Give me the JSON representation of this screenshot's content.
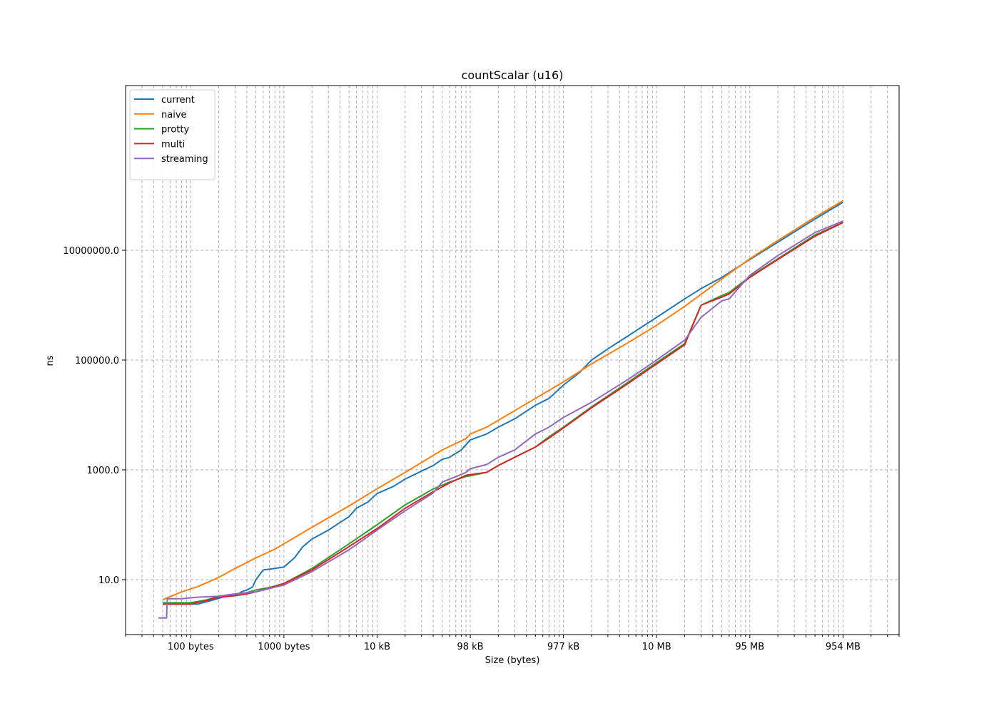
{
  "chart_data": {
    "type": "line",
    "title": "countScalar (u16)",
    "xlabel": "Size (bytes)",
    "ylabel": "ns",
    "x_scale": "log",
    "y_scale": "log",
    "xlim": [
      20,
      4000000000
    ],
    "ylim": [
      1,
      10000000000
    ],
    "grid": "both axes, dashed, major and minor x",
    "legend_position": "top-left",
    "x_ticks": [
      {
        "value": 100,
        "label": "100 bytes"
      },
      {
        "value": 1000,
        "label": "1000 bytes"
      },
      {
        "value": 10000,
        "label": "10 kB"
      },
      {
        "value": 100000,
        "label": "98 kB"
      },
      {
        "value": 1000000,
        "label": "977 kB"
      },
      {
        "value": 10000000,
        "label": "10 MB"
      },
      {
        "value": 100000000,
        "label": "95 MB"
      },
      {
        "value": 1000000000,
        "label": "954 MB"
      }
    ],
    "y_ticks": [
      {
        "value": 10,
        "label": "10.0"
      },
      {
        "value": 1000,
        "label": "1000.0"
      },
      {
        "value": 100000,
        "label": "100000.0"
      },
      {
        "value": 10000000,
        "label": "10000000.0"
      }
    ],
    "series": [
      {
        "name": "current",
        "color": "#1f77b4",
        "points": [
          [
            50,
            3.6
          ],
          [
            60,
            3.6
          ],
          [
            80,
            3.6
          ],
          [
            120,
            3.6
          ],
          [
            160,
            4.1
          ],
          [
            240,
            5.0
          ],
          [
            300,
            5.1
          ],
          [
            350,
            6.0
          ],
          [
            400,
            6.5
          ],
          [
            460,
            7.3
          ],
          [
            500,
            10
          ],
          [
            600,
            15
          ],
          [
            800,
            16
          ],
          [
            1000,
            17
          ],
          [
            1300,
            25
          ],
          [
            1600,
            40
          ],
          [
            2000,
            55
          ],
          [
            3000,
            80
          ],
          [
            4000,
            110
          ],
          [
            5000,
            140
          ],
          [
            6000,
            200
          ],
          [
            8000,
            260
          ],
          [
            10000,
            370
          ],
          [
            15000,
            500
          ],
          [
            20000,
            680
          ],
          [
            30000,
            950
          ],
          [
            40000,
            1200
          ],
          [
            50000,
            1550
          ],
          [
            60000,
            1700
          ],
          [
            80000,
            2300
          ],
          [
            100000,
            3500
          ],
          [
            150000,
            4500
          ],
          [
            200000,
            6000
          ],
          [
            300000,
            8500
          ],
          [
            500000,
            15000
          ],
          [
            700000,
            20000
          ],
          [
            1000000,
            35000
          ],
          [
            1500000,
            60000
          ],
          [
            2000000,
            100000
          ],
          [
            3000000,
            160000
          ],
          [
            5000000,
            280000
          ],
          [
            10000000,
            600000
          ],
          [
            20000000,
            1300000
          ],
          [
            30000000,
            2000000
          ],
          [
            50000000,
            3200000
          ],
          [
            100000000,
            6800000
          ],
          [
            200000000,
            14000000
          ],
          [
            500000000,
            37000000
          ],
          [
            1000000000,
            75000000
          ]
        ]
      },
      {
        "name": "naive",
        "color": "#ff7f0e",
        "points": [
          [
            50,
            4.3
          ],
          [
            80,
            6.0
          ],
          [
            120,
            7.5
          ],
          [
            200,
            11
          ],
          [
            300,
            16
          ],
          [
            500,
            25
          ],
          [
            800,
            36
          ],
          [
            1000,
            45
          ],
          [
            2000,
            90
          ],
          [
            5000,
            220
          ],
          [
            10000,
            450
          ],
          [
            20000,
            900
          ],
          [
            50000,
            2300
          ],
          [
            90000,
            3700
          ],
          [
            100000,
            4500
          ],
          [
            150000,
            6000
          ],
          [
            200000,
            8000
          ],
          [
            500000,
            20000
          ],
          [
            1000000,
            40000
          ],
          [
            2000000,
            85000
          ],
          [
            5000000,
            210000
          ],
          [
            10000000,
            430000
          ],
          [
            20000000,
            950000
          ],
          [
            50000000,
            3000000
          ],
          [
            100000000,
            7000000
          ],
          [
            200000000,
            15000000
          ],
          [
            500000000,
            40000000
          ],
          [
            1000000000,
            80000000
          ]
        ]
      },
      {
        "name": "protty",
        "color": "#2ca02c",
        "points": [
          [
            50,
            3.8
          ],
          [
            70,
            3.8
          ],
          [
            100,
            3.8
          ],
          [
            150,
            4.3
          ],
          [
            200,
            5.0
          ],
          [
            300,
            5.5
          ],
          [
            400,
            5.8
          ],
          [
            500,
            6.5
          ],
          [
            700,
            7.2
          ],
          [
            1000,
            8.5
          ],
          [
            2000,
            16
          ],
          [
            5000,
            45
          ],
          [
            10000,
            100
          ],
          [
            20000,
            230
          ],
          [
            40000,
            450
          ],
          [
            60000,
            600
          ],
          [
            90000,
            760
          ],
          [
            100000,
            780
          ],
          [
            150000,
            900
          ],
          [
            200000,
            1200
          ],
          [
            300000,
            1700
          ],
          [
            500000,
            2600
          ],
          [
            700000,
            4000
          ],
          [
            1000000,
            6000
          ],
          [
            2000000,
            14000
          ],
          [
            5000000,
            40000
          ],
          [
            10000000,
            90000
          ],
          [
            20000000,
            200000
          ],
          [
            30000000,
            1000000
          ],
          [
            50000000,
            1500000
          ],
          [
            60000000,
            1700000
          ],
          [
            100000000,
            3300000
          ],
          [
            200000000,
            7000000
          ],
          [
            500000000,
            19000000
          ],
          [
            1000000000,
            32000000
          ]
        ]
      },
      {
        "name": "multi",
        "color": "#d62728",
        "points": [
          [
            50,
            3.6
          ],
          [
            70,
            3.6
          ],
          [
            100,
            3.6
          ],
          [
            150,
            4.2
          ],
          [
            200,
            4.8
          ],
          [
            300,
            5.1
          ],
          [
            400,
            5.5
          ],
          [
            500,
            6.0
          ],
          [
            700,
            7.0
          ],
          [
            1000,
            8.5
          ],
          [
            2000,
            15
          ],
          [
            5000,
            40
          ],
          [
            10000,
            85
          ],
          [
            20000,
            200
          ],
          [
            40000,
            400
          ],
          [
            60000,
            580
          ],
          [
            90000,
            800
          ],
          [
            100000,
            820
          ],
          [
            150000,
            900
          ],
          [
            200000,
            1200
          ],
          [
            300000,
            1700
          ],
          [
            500000,
            2600
          ],
          [
            700000,
            3800
          ],
          [
            1000000,
            5800
          ],
          [
            2000000,
            13500
          ],
          [
            5000000,
            38000
          ],
          [
            10000000,
            85000
          ],
          [
            20000000,
            190000
          ],
          [
            30000000,
            1000000
          ],
          [
            50000000,
            1400000
          ],
          [
            60000000,
            1600000
          ],
          [
            100000000,
            3200000
          ],
          [
            200000000,
            6800000
          ],
          [
            500000000,
            18000000
          ],
          [
            1000000000,
            32000000
          ]
        ]
      },
      {
        "name": "streaming",
        "color": "#9467bd",
        "points": [
          [
            45,
            2.0
          ],
          [
            55,
            2.0
          ],
          [
            56,
            4.5
          ],
          [
            80,
            4.5
          ],
          [
            120,
            4.8
          ],
          [
            200,
            5.0
          ],
          [
            300,
            5.5
          ],
          [
            500,
            6.0
          ],
          [
            1000,
            8.0
          ],
          [
            2000,
            14
          ],
          [
            5000,
            35
          ],
          [
            10000,
            80
          ],
          [
            20000,
            180
          ],
          [
            40000,
            380
          ],
          [
            50000,
            600
          ],
          [
            70000,
            750
          ],
          [
            90000,
            900
          ],
          [
            100000,
            1050
          ],
          [
            150000,
            1250
          ],
          [
            200000,
            1700
          ],
          [
            300000,
            2300
          ],
          [
            500000,
            4500
          ],
          [
            700000,
            6000
          ],
          [
            1000000,
            9000
          ],
          [
            2000000,
            17000
          ],
          [
            5000000,
            45000
          ],
          [
            10000000,
            100000
          ],
          [
            20000000,
            230000
          ],
          [
            30000000,
            600000
          ],
          [
            50000000,
            1200000
          ],
          [
            60000000,
            1300000
          ],
          [
            100000000,
            3500000
          ],
          [
            200000000,
            8000000
          ],
          [
            500000000,
            21000000
          ],
          [
            1000000000,
            34000000
          ]
        ]
      }
    ]
  }
}
